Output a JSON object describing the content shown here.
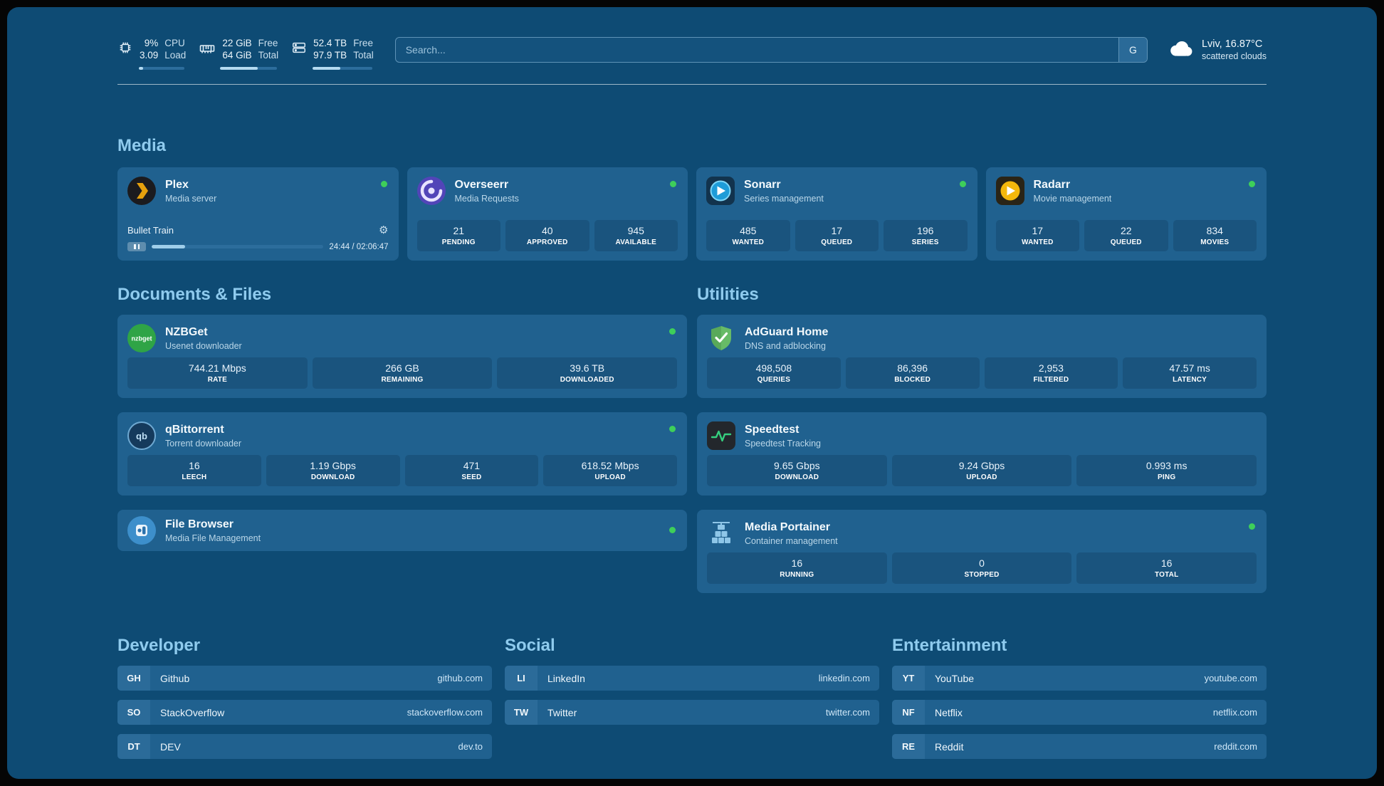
{
  "topbar": {
    "cpu": {
      "line1": "9%",
      "line2": "3.09",
      "label1": "CPU",
      "label2": "Load",
      "progress": 9
    },
    "memory": {
      "line1": "22 GiB",
      "line2": "64 GiB",
      "label1": "Free",
      "label2": "Total",
      "progress": 66
    },
    "disk": {
      "line1": "52.4 TB",
      "line2": "97.9 TB",
      "label1": "Free",
      "label2": "Total",
      "progress": 46
    },
    "search": {
      "placeholder": "Search...",
      "button_label": "G"
    },
    "weather": {
      "location": "Lviv, 16.87°C",
      "condition": "scattered clouds"
    }
  },
  "media": {
    "heading": "Media",
    "plex": {
      "name": "Plex",
      "desc": "Media server",
      "now_playing": "Bullet Train",
      "time": "24:44 / 02:06:47",
      "progress": 19.5
    },
    "overseerr": {
      "name": "Overseerr",
      "desc": "Media Requests",
      "stats": [
        {
          "value": "21",
          "label": "PENDING"
        },
        {
          "value": "40",
          "label": "APPROVED"
        },
        {
          "value": "945",
          "label": "AVAILABLE"
        }
      ]
    },
    "sonarr": {
      "name": "Sonarr",
      "desc": "Series management",
      "stats": [
        {
          "value": "485",
          "label": "WANTED"
        },
        {
          "value": "17",
          "label": "QUEUED"
        },
        {
          "value": "196",
          "label": "SERIES"
        }
      ]
    },
    "radarr": {
      "name": "Radarr",
      "desc": "Movie management",
      "stats": [
        {
          "value": "17",
          "label": "WANTED"
        },
        {
          "value": "22",
          "label": "QUEUED"
        },
        {
          "value": "834",
          "label": "MOVIES"
        }
      ]
    }
  },
  "documents": {
    "heading": "Documents & Files",
    "nzbget": {
      "name": "NZBGet",
      "desc": "Usenet downloader",
      "icon_text": "nzbget",
      "stats": [
        {
          "value": "744.21 Mbps",
          "label": "RATE"
        },
        {
          "value": "266 GB",
          "label": "REMAINING"
        },
        {
          "value": "39.6 TB",
          "label": "DOWNLOADED"
        }
      ]
    },
    "qbittorrent": {
      "name": "qBittorrent",
      "desc": "Torrent downloader",
      "icon_text": "qb",
      "stats": [
        {
          "value": "16",
          "label": "LEECH"
        },
        {
          "value": "1.19 Gbps",
          "label": "DOWNLOAD"
        },
        {
          "value": "471",
          "label": "SEED"
        },
        {
          "value": "618.52 Mbps",
          "label": "UPLOAD"
        }
      ]
    },
    "filebrowser": {
      "name": "File Browser",
      "desc": "Media File Management"
    }
  },
  "utilities": {
    "heading": "Utilities",
    "adguard": {
      "name": "AdGuard Home",
      "desc": "DNS and adblocking",
      "stats": [
        {
          "value": "498,508",
          "label": "QUERIES"
        },
        {
          "value": "86,396",
          "label": "BLOCKED"
        },
        {
          "value": "2,953",
          "label": "FILTERED"
        },
        {
          "value": "47.57 ms",
          "label": "LATENCY"
        }
      ]
    },
    "speedtest": {
      "name": "Speedtest",
      "desc": "Speedtest Tracking",
      "stats": [
        {
          "value": "9.65 Gbps",
          "label": "DOWNLOAD"
        },
        {
          "value": "9.24 Gbps",
          "label": "UPLOAD"
        },
        {
          "value": "0.993 ms",
          "label": "PING"
        }
      ]
    },
    "portainer": {
      "name": "Media Portainer",
      "desc": "Container management",
      "stats": [
        {
          "value": "16",
          "label": "RUNNING"
        },
        {
          "value": "0",
          "label": "STOPPED"
        },
        {
          "value": "16",
          "label": "TOTAL"
        }
      ]
    }
  },
  "bookmarks": {
    "developer": {
      "heading": "Developer",
      "items": [
        {
          "abbr": "GH",
          "name": "Github",
          "url": "github.com"
        },
        {
          "abbr": "SO",
          "name": "StackOverflow",
          "url": "stackoverflow.com"
        },
        {
          "abbr": "DT",
          "name": "DEV",
          "url": "dev.to"
        }
      ]
    },
    "social": {
      "heading": "Social",
      "items": [
        {
          "abbr": "LI",
          "name": "LinkedIn",
          "url": "linkedin.com"
        },
        {
          "abbr": "TW",
          "name": "Twitter",
          "url": "twitter.com"
        }
      ]
    },
    "entertainment": {
      "heading": "Entertainment",
      "items": [
        {
          "abbr": "YT",
          "name": "YouTube",
          "url": "youtube.com"
        },
        {
          "abbr": "NF",
          "name": "Netflix",
          "url": "netflix.com"
        },
        {
          "abbr": "RE",
          "name": "Reddit",
          "url": "reddit.com"
        }
      ]
    }
  },
  "colors": {
    "background": "#0E4B74",
    "card": "#20618F",
    "section_heading": "#8FCBEE",
    "status_online": "#3ECF5A"
  }
}
